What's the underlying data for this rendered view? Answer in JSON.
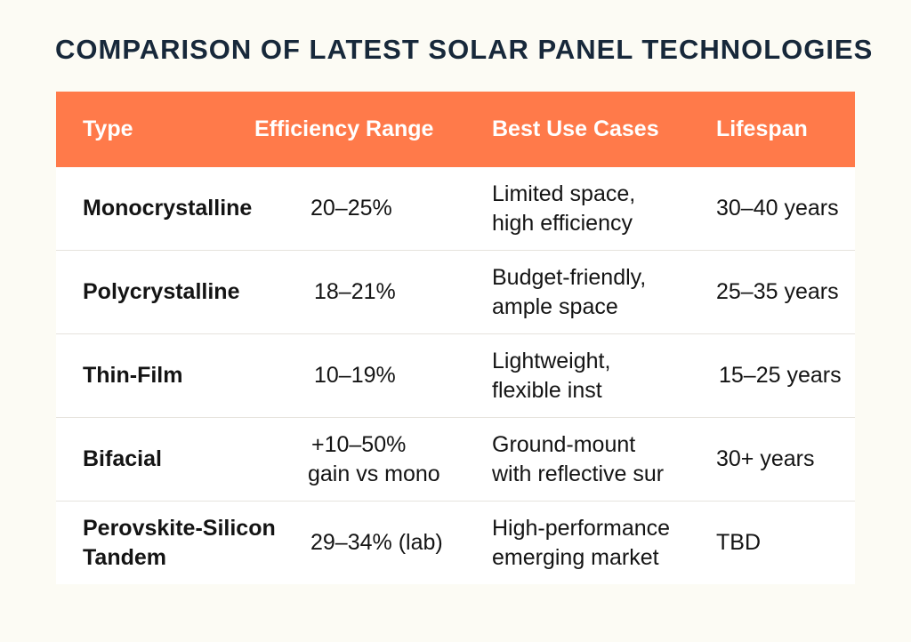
{
  "title": "COMPARISON OF LATEST SOLAR PANEL TECHNOLOGIES",
  "header": {
    "type": "Type",
    "efficiency": "Efficiency Range",
    "use_cases": "Best Use Cases",
    "lifespan": "Lifespan"
  },
  "rows": [
    {
      "type": [
        "Monocrystalline"
      ],
      "efficiency": [
        "20–25%"
      ],
      "use_cases": [
        "Limited space,",
        "high efficiency"
      ],
      "lifespan": [
        "30–40 years"
      ]
    },
    {
      "type": [
        "Polycrystalline"
      ],
      "efficiency": [
        "18–21%"
      ],
      "use_cases": [
        "Budget-friendly,",
        "ample space"
      ],
      "lifespan": [
        "25–35 years"
      ]
    },
    {
      "type": [
        "Thin-Film"
      ],
      "efficiency": [
        "10–19%"
      ],
      "use_cases": [
        "Lightweight,",
        "flexible inst"
      ],
      "lifespan": [
        "15–25 years"
      ]
    },
    {
      "type": [
        "Bifacial"
      ],
      "efficiency": [
        "+10–50%",
        "gain vs mono"
      ],
      "use_cases": [
        "Ground-mount",
        "with reflective sur"
      ],
      "lifespan": [
        "30+ years"
      ]
    },
    {
      "type": [
        "Perovskite-Silicon",
        "Tandem"
      ],
      "efficiency": [
        "29–34% (lab)"
      ],
      "use_cases": [
        "High-performance",
        "emerging market"
      ],
      "lifespan": [
        "TBD"
      ]
    }
  ],
  "colors": {
    "header_bg": "#ff7a4a",
    "title": "#17283a",
    "page_bg": "#fcfbf4"
  }
}
